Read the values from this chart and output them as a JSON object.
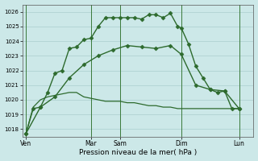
{
  "background_color": "#cce8e8",
  "grid_color": "#aacece",
  "line_color": "#2d6a2d",
  "marker_color": "#2d6a2d",
  "xlabel": "Pression niveau de la mer( hPa )",
  "ylim": [
    1017.5,
    1026.5
  ],
  "yticks": [
    1018,
    1019,
    1020,
    1021,
    1022,
    1023,
    1024,
    1025,
    1026
  ],
  "xlim": [
    0,
    32
  ],
  "day_labels": [
    "Ven",
    "Mar",
    "Sam",
    "Dim",
    "Lun"
  ],
  "day_positions": [
    0.5,
    9.5,
    13.5,
    22,
    30
  ],
  "vline_positions": [
    0.5,
    9.5,
    13.5,
    22,
    30
  ],
  "series": [
    {
      "x": [
        0.5,
        1.5,
        2.5,
        3.5,
        4.5,
        5.5,
        6.5,
        7.5,
        8.5,
        9.5,
        10.5,
        11.5,
        12.5,
        13.5,
        14.5,
        15.5,
        16.5,
        17.5,
        18.5,
        19.5,
        20.5,
        21.5,
        22,
        23,
        24,
        25,
        26,
        27,
        28,
        29,
        30
      ],
      "y": [
        1017.7,
        1019.4,
        1019.5,
        1020.5,
        1021.8,
        1022.0,
        1023.5,
        1023.6,
        1024.1,
        1024.2,
        1025.0,
        1025.6,
        1025.6,
        1025.6,
        1025.6,
        1025.6,
        1025.5,
        1025.8,
        1025.8,
        1025.6,
        1025.9,
        1025.0,
        1024.9,
        1023.8,
        1022.3,
        1021.5,
        1020.7,
        1020.5,
        1020.6,
        1019.4,
        1019.4
      ],
      "marker": "D",
      "markersize": 2.5,
      "linewidth": 1.0
    },
    {
      "x": [
        0.5,
        1.5,
        2.5,
        3.5,
        4.5,
        5.5,
        6.5,
        7.5,
        8.5,
        9.5,
        10.5,
        11.5,
        12.5,
        13.5,
        14.5,
        15.5,
        16.5,
        17.5,
        18.5,
        19.5,
        20.5,
        21.5,
        22,
        23,
        24,
        25,
        26,
        27,
        28,
        29,
        30
      ],
      "y": [
        1017.7,
        1019.5,
        1020.0,
        1020.2,
        1020.3,
        1020.4,
        1020.5,
        1020.5,
        1020.2,
        1020.1,
        1020.0,
        1019.9,
        1019.9,
        1019.9,
        1019.8,
        1019.8,
        1019.7,
        1019.6,
        1019.6,
        1019.5,
        1019.5,
        1019.4,
        1019.4,
        1019.4,
        1019.4,
        1019.4,
        1019.4,
        1019.4,
        1019.4,
        1019.4,
        1019.4
      ],
      "marker": null,
      "markersize": 0,
      "linewidth": 0.9
    },
    {
      "x": [
        0.5,
        2.5,
        4.5,
        6.5,
        8.5,
        10.5,
        12.5,
        14.5,
        16.5,
        18.5,
        20.5,
        22,
        24,
        26,
        28,
        30
      ],
      "y": [
        1017.7,
        1019.5,
        1020.2,
        1021.5,
        1022.4,
        1023.0,
        1023.4,
        1023.7,
        1023.6,
        1023.5,
        1023.7,
        1023.1,
        1021.0,
        1020.7,
        1020.6,
        1019.4
      ],
      "marker": "D",
      "markersize": 2.5,
      "linewidth": 1.0
    }
  ]
}
